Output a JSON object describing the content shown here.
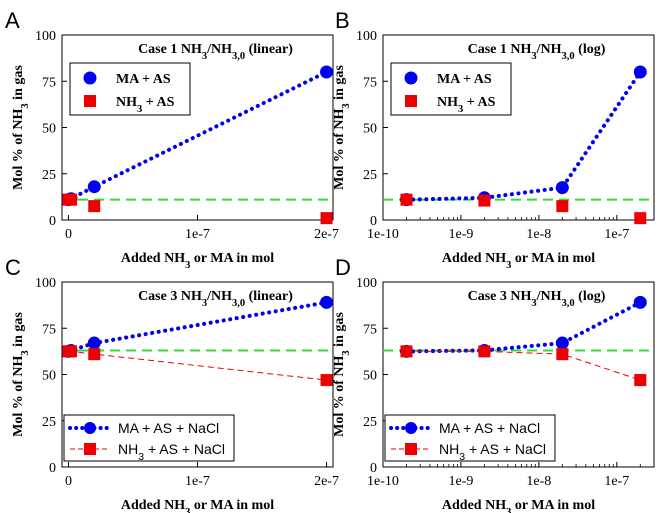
{
  "chart_data": [
    {
      "letter": "A",
      "type": "scatter",
      "title": "Case 1 NH3/NH3,0 (linear)",
      "xscale": "linear",
      "xlim": [
        -5e-09,
        2.05e-07
      ],
      "xticks": [
        0,
        1e-07,
        2e-07
      ],
      "xticklabels": [
        "0",
        "1e-7",
        "2e-7"
      ],
      "ylim": [
        0,
        100
      ],
      "yticks": [
        0,
        25,
        50,
        75,
        100
      ],
      "xlabel": "Added NH3 or MA in mol",
      "ylabel": "Mol % of NH3 in gas",
      "reference_line": 11,
      "legend_style": "boxed-serif",
      "legend_position": "upper-left",
      "series": [
        {
          "name": "MA + AS",
          "marker": "circle",
          "color": "#0000ee",
          "line": "dotted",
          "x": [
            0,
            2e-09,
            2e-08,
            2e-07
          ],
          "y": [
            11,
            11.5,
            18,
            80
          ]
        },
        {
          "name": "NH3 + AS",
          "marker": "square",
          "color": "#ee0000",
          "line": "none",
          "x": [
            0,
            2e-09,
            2e-08,
            2e-07
          ],
          "y": [
            11,
            11,
            7.5,
            1
          ]
        }
      ]
    },
    {
      "letter": "B",
      "type": "scatter",
      "title": "Case 1 NH3/NH3,0 (log)",
      "xscale": "log",
      "xlim": [
        1e-10,
        3e-07
      ],
      "xticks": [
        1e-10,
        1e-09,
        1e-08,
        1e-07
      ],
      "xticklabels": [
        "1e-10",
        "1e-9",
        "1e-8",
        "1e-7"
      ],
      "ylim": [
        0,
        100
      ],
      "yticks": [
        0,
        25,
        50,
        75,
        100
      ],
      "xlabel": "Added NH3 or MA in mol",
      "ylabel": "Mol % of NH3 in gas",
      "reference_line": 11,
      "legend_style": "boxed-serif",
      "legend_position": "upper-left",
      "series": [
        {
          "name": "MA + AS",
          "marker": "circle",
          "color": "#0000ee",
          "line": "dotted",
          "x": [
            2e-10,
            2e-09,
            2e-08,
            2e-07
          ],
          "y": [
            11,
            12,
            17.5,
            80
          ]
        },
        {
          "name": "NH3 + AS",
          "marker": "square",
          "color": "#ee0000",
          "line": "none",
          "x": [
            2e-10,
            2e-09,
            2e-08,
            2e-07
          ],
          "y": [
            11,
            10.5,
            7.5,
            1
          ]
        }
      ]
    },
    {
      "letter": "C",
      "type": "scatter",
      "title": "Case 3 NH3/NH3,0 (linear)",
      "xscale": "linear",
      "xlim": [
        -5e-09,
        2.05e-07
      ],
      "xticks": [
        0,
        1e-07,
        2e-07
      ],
      "xticklabels": [
        "0",
        "1e-7",
        "2e-7"
      ],
      "ylim": [
        0,
        100
      ],
      "yticks": [
        0,
        25,
        50,
        75,
        100
      ],
      "xlabel": "Added NH3 or MA in mol",
      "ylabel": "Mol % of NH3 in gas",
      "reference_line": 63,
      "legend_style": "line-sans",
      "legend_position": "lower-left",
      "series": [
        {
          "name": "MA + AS + NaCl",
          "marker": "circle",
          "color": "#0000ee",
          "line": "dotted",
          "x": [
            0,
            2e-09,
            2e-08,
            2e-07
          ],
          "y": [
            62.5,
            63,
            67,
            89
          ]
        },
        {
          "name": "NH3 + AS + NaCl",
          "marker": "square",
          "color": "#ee0000",
          "line": "dashed",
          "x": [
            0,
            2e-09,
            2e-08,
            2e-07
          ],
          "y": [
            62.5,
            62.5,
            61,
            47
          ]
        }
      ]
    },
    {
      "letter": "D",
      "type": "scatter",
      "title": "Case 3 NH3/NH3,0 (log)",
      "xscale": "log",
      "xlim": [
        1e-10,
        3e-07
      ],
      "xticks": [
        1e-10,
        1e-09,
        1e-08,
        1e-07
      ],
      "xticklabels": [
        "1e-10",
        "1e-9",
        "1e-8",
        "1e-7"
      ],
      "ylim": [
        0,
        100
      ],
      "yticks": [
        0,
        25,
        50,
        75,
        100
      ],
      "xlabel": "Added NH3 or MA in mol",
      "ylabel": "Mol % of NH3 in gas",
      "reference_line": 63,
      "legend_style": "line-sans",
      "legend_position": "lower-left",
      "series": [
        {
          "name": "MA + AS + NaCl",
          "marker": "circle",
          "color": "#0000ee",
          "line": "dotted",
          "x": [
            2e-10,
            2e-09,
            2e-08,
            2e-07
          ],
          "y": [
            62.5,
            63,
            67,
            89
          ]
        },
        {
          "name": "NH3 + AS + NaCl",
          "marker": "square",
          "color": "#ee0000",
          "line": "dashed",
          "x": [
            2e-10,
            2e-09,
            2e-08,
            2e-07
          ],
          "y": [
            62.5,
            62.5,
            61,
            47
          ]
        }
      ]
    }
  ],
  "colors": {
    "reference_line": "#33dd33",
    "ma_series": "#0000ee",
    "nh3_series": "#ee0000"
  }
}
